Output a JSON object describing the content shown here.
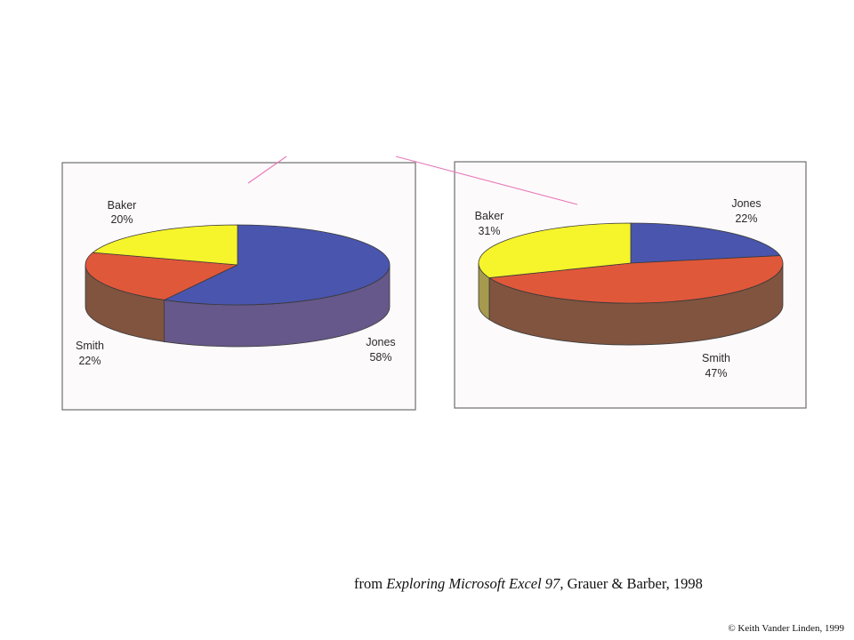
{
  "caption": {
    "prefix": "from ",
    "book_title": "Exploring Microsoft Excel 97",
    "suffix": ", Grauer & Barber, 1998"
  },
  "copyright": "© Keith Vander Linden, 1999",
  "colors": {
    "Jones_top": "#4a55ae",
    "Jones_side": "#66588a",
    "Smith_top": "#e0583a",
    "Smith_side": "#80543f",
    "Baker_top": "#f6f42a",
    "Baker_side": "#a59a4e",
    "annotation_line": "#e878b8"
  },
  "chart_data": [
    {
      "type": "pie",
      "style": "3d",
      "title": "",
      "slices": [
        {
          "name": "Jones",
          "value": 58,
          "label": "Jones",
          "pct_label": "58%"
        },
        {
          "name": "Smith",
          "value": 22,
          "label": "Smith",
          "pct_label": "22%"
        },
        {
          "name": "Baker",
          "value": 20,
          "label": "Baker",
          "pct_label": "20%"
        }
      ]
    },
    {
      "type": "pie",
      "style": "3d",
      "title": "",
      "slices": [
        {
          "name": "Jones",
          "value": 22,
          "label": "Jones",
          "pct_label": "22%"
        },
        {
          "name": "Smith",
          "value": 47,
          "label": "Smith",
          "pct_label": "47%"
        },
        {
          "name": "Baker",
          "value": 31,
          "label": "Baker",
          "pct_label": "31%"
        }
      ]
    }
  ]
}
